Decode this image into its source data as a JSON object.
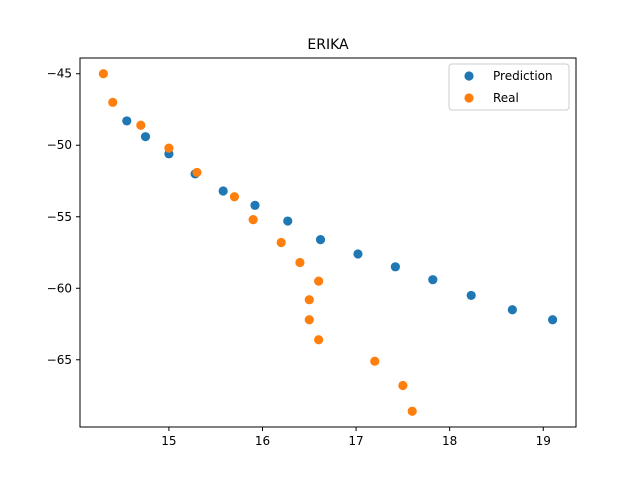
{
  "chart_data": {
    "type": "scatter",
    "title": "ERIKA",
    "xlabel": "",
    "ylabel": "",
    "xlim": [
      14.05,
      19.35
    ],
    "ylim": [
      -69.7,
      -43.9
    ],
    "xticks": [
      15,
      16,
      17,
      18,
      19
    ],
    "yticks": [
      -45,
      -50,
      -55,
      -60,
      -65
    ],
    "grid": false,
    "legend_position": "top-right",
    "series": [
      {
        "name": "Prediction",
        "color": "#1f77b4",
        "x": [
          14.55,
          14.75,
          15.0,
          15.28,
          15.58,
          15.92,
          16.27,
          16.62,
          17.02,
          17.42,
          17.82,
          18.23,
          18.67,
          19.1
        ],
        "y": [
          -48.3,
          -49.4,
          -50.6,
          -52.0,
          -53.2,
          -54.2,
          -55.3,
          -56.6,
          -57.6,
          -58.5,
          -59.4,
          -60.5,
          -61.5,
          -62.2
        ]
      },
      {
        "name": "Real",
        "color": "#ff7f0e",
        "x": [
          14.3,
          14.4,
          14.7,
          15.0,
          15.3,
          15.7,
          15.9,
          16.2,
          16.4,
          16.6,
          16.5,
          16.5,
          16.6,
          17.2,
          17.5,
          17.6
        ],
        "y": [
          -45.0,
          -47.0,
          -48.6,
          -50.2,
          -51.9,
          -53.6,
          -55.2,
          -56.8,
          -58.2,
          -59.5,
          -60.8,
          -62.2,
          -63.6,
          -65.1,
          -66.8,
          -68.6
        ]
      }
    ]
  }
}
